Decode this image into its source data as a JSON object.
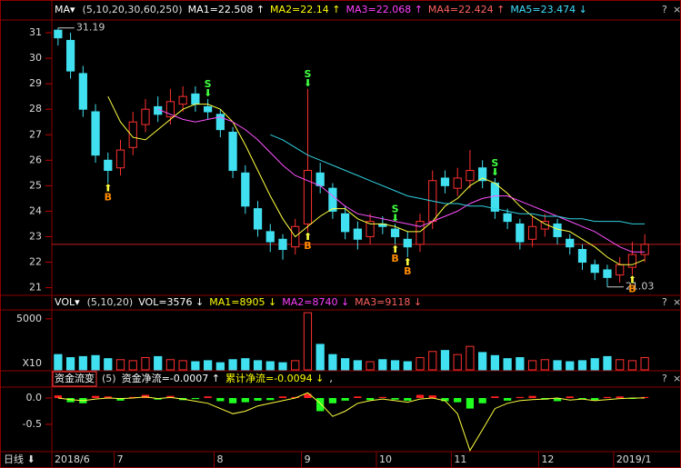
{
  "chart_data": {
    "type": "candlestick",
    "price_header": {
      "menu": "MA▾",
      "params": "(5,10,20,30,60,250)",
      "items": [
        {
          "text": "MA1=22.508 ↑",
          "color": "#ffffff"
        },
        {
          "text": "MA2=22.14 ↑",
          "color": "#ffff00"
        },
        {
          "text": "MA3=22.068 ↑",
          "color": "#ff40ff"
        },
        {
          "text": "MA4=22.424 ↑",
          "color": "#ff6060"
        },
        {
          "text": "MA5=23.474 ↓",
          "color": "#40e0ff"
        }
      ]
    },
    "categories": [
      "2018/6",
      null,
      null,
      null,
      null,
      "7",
      null,
      null,
      null,
      null,
      null,
      null,
      null,
      "8",
      null,
      null,
      null,
      null,
      null,
      null,
      "9",
      null,
      null,
      null,
      null,
      null,
      "10",
      null,
      null,
      null,
      null,
      null,
      "11",
      null,
      null,
      null,
      null,
      null,
      null,
      "12",
      null,
      null,
      null,
      null,
      null,
      "2019/1",
      null,
      null
    ],
    "open": [
      31.1,
      30.7,
      29.4,
      27.9,
      26.0,
      25.7,
      26.5,
      27.4,
      28.1,
      27.7,
      28.2,
      28.6,
      28.1,
      27.8,
      27.1,
      25.5,
      24.1,
      23.2,
      22.9,
      22.6,
      23.5,
      25.5,
      24.9,
      23.9,
      23.3,
      23.0,
      23.5,
      23.3,
      22.9,
      22.7,
      23.6,
      25.3,
      24.9,
      25.2,
      25.7,
      25.1,
      23.9,
      23.5,
      22.9,
      23.3,
      23.5,
      22.9,
      22.5,
      21.9,
      21.7,
      21.5,
      21.8,
      22.3
    ],
    "high": [
      31.19,
      31.0,
      29.7,
      28.2,
      26.3,
      26.8,
      27.9,
      28.4,
      28.5,
      28.8,
      28.9,
      28.9,
      28.4,
      28.0,
      27.3,
      25.8,
      24.4,
      23.5,
      23.1,
      23.7,
      28.8,
      25.9,
      25.1,
      24.2,
      23.6,
      23.9,
      23.8,
      23.5,
      23.2,
      23.9,
      25.6,
      25.6,
      25.7,
      26.4,
      26.0,
      25.3,
      24.1,
      23.7,
      23.8,
      23.9,
      23.7,
      23.1,
      22.7,
      22.1,
      21.9,
      22.2,
      22.8,
      23.1
    ],
    "low": [
      30.5,
      29.2,
      27.7,
      25.9,
      25.1,
      25.4,
      26.2,
      27.1,
      27.5,
      27.4,
      27.9,
      27.9,
      27.6,
      26.9,
      25.3,
      23.9,
      23.0,
      22.4,
      22.1,
      22.3,
      23.2,
      24.7,
      23.7,
      22.9,
      22.5,
      22.7,
      23.1,
      22.7,
      22.2,
      22.4,
      23.3,
      24.7,
      24.6,
      24.9,
      24.9,
      23.7,
      23.3,
      22.5,
      22.6,
      23.0,
      22.7,
      22.3,
      21.7,
      21.3,
      21.03,
      21.2,
      21.5,
      22.0
    ],
    "close": [
      30.8,
      29.5,
      28.0,
      26.2,
      25.6,
      26.4,
      27.5,
      28.0,
      27.8,
      28.3,
      28.5,
      28.2,
      27.9,
      27.2,
      25.6,
      24.2,
      23.3,
      22.8,
      22.5,
      23.4,
      25.6,
      25.0,
      24.0,
      23.2,
      22.9,
      23.6,
      23.4,
      23.0,
      22.6,
      23.6,
      25.2,
      25.0,
      25.3,
      25.6,
      25.2,
      24.0,
      23.6,
      22.8,
      23.4,
      23.6,
      23.0,
      22.6,
      22.0,
      21.6,
      21.4,
      21.9,
      22.3,
      22.7
    ],
    "up_color": "#ff3030",
    "down_color": "#40e0f0",
    "ma_lines": [
      {
        "color": "#ffff40",
        "values": [
          null,
          null,
          null,
          null,
          28.5,
          27.5,
          26.9,
          26.8,
          27.2,
          27.6,
          28.0,
          28.2,
          28.2,
          28.0,
          27.5,
          26.6,
          25.6,
          24.6,
          23.7,
          23.0,
          23.4,
          23.8,
          24.1,
          24.1,
          23.7,
          23.5,
          23.5,
          23.4,
          23.2,
          23.2,
          23.6,
          24.2,
          24.5,
          25.0,
          25.3,
          25.1,
          24.7,
          24.2,
          23.8,
          23.5,
          23.3,
          23.2,
          22.9,
          22.6,
          22.2,
          21.9,
          21.9,
          22.1
        ]
      },
      {
        "color": "#ff50ff",
        "values": [
          null,
          null,
          null,
          null,
          null,
          null,
          null,
          null,
          28.0,
          27.8,
          27.6,
          27.5,
          27.6,
          27.7,
          27.5,
          27.2,
          26.8,
          26.3,
          25.8,
          25.4,
          25.2,
          25.0,
          24.6,
          24.2,
          23.9,
          23.8,
          23.7,
          23.6,
          23.5,
          23.4,
          23.6,
          23.8,
          24.0,
          24.3,
          24.5,
          24.6,
          24.6,
          24.4,
          24.2,
          24.0,
          23.8,
          23.6,
          23.4,
          23.2,
          22.9,
          22.6,
          22.4,
          22.4
        ]
      },
      {
        "color": "#30d0e0",
        "values": [
          null,
          null,
          null,
          null,
          null,
          null,
          null,
          null,
          null,
          null,
          null,
          null,
          null,
          null,
          null,
          null,
          null,
          27.0,
          26.8,
          26.5,
          26.2,
          26.0,
          25.8,
          25.6,
          25.4,
          25.2,
          25.0,
          24.8,
          24.6,
          24.5,
          24.4,
          24.3,
          24.3,
          24.2,
          24.2,
          24.1,
          24.0,
          23.9,
          23.9,
          23.8,
          23.8,
          23.7,
          23.7,
          23.6,
          23.6,
          23.6,
          23.5,
          23.5
        ]
      }
    ],
    "buy_signals": [
      null,
      null,
      null,
      null,
      "B",
      null,
      null,
      null,
      null,
      null,
      null,
      null,
      null,
      null,
      null,
      null,
      null,
      null,
      null,
      null,
      "B",
      null,
      null,
      null,
      null,
      null,
      null,
      "B",
      "B",
      null,
      null,
      null,
      null,
      null,
      null,
      null,
      null,
      null,
      null,
      null,
      null,
      null,
      null,
      null,
      null,
      null,
      "B",
      null
    ],
    "sell_signals": [
      null,
      null,
      null,
      null,
      null,
      null,
      null,
      null,
      null,
      null,
      null,
      null,
      "S",
      null,
      null,
      null,
      null,
      null,
      null,
      null,
      "S",
      null,
      null,
      null,
      null,
      null,
      null,
      "S",
      null,
      null,
      null,
      null,
      null,
      null,
      null,
      "S",
      null,
      null,
      null,
      null,
      null,
      null,
      null,
      null,
      null,
      null,
      null,
      null
    ],
    "ylim": [
      20.7,
      31.5
    ],
    "yticks": [
      21,
      22,
      23,
      24,
      25,
      26,
      27,
      28,
      29,
      30,
      31
    ],
    "volume": {
      "header": {
        "menu": "VOL▾",
        "params": "(5,10,20)",
        "items": [
          {
            "text": "VOL=3576 ↓",
            "color": "#ffffff"
          },
          {
            "text": "MA1=8905 ↓",
            "color": "#ffff00"
          },
          {
            "text": "MA2=8740 ↓",
            "color": "#ff40ff"
          },
          {
            "text": "MA3=9118 ↓",
            "color": "#ff6060"
          }
        ]
      },
      "values": [
        1500,
        1200,
        1300,
        1400,
        1100,
        1000,
        900,
        1200,
        1300,
        1000,
        900,
        800,
        900,
        700,
        1000,
        1100,
        900,
        800,
        700,
        900,
        5600,
        2500,
        1500,
        1100,
        900,
        800,
        1000,
        900,
        800,
        1200,
        1800,
        1900,
        1500,
        2300,
        1700,
        1400,
        1100,
        1200,
        900,
        1000,
        900,
        800,
        900,
        1100,
        1300,
        1000,
        900,
        1200
      ],
      "ylim": [
        0,
        5700
      ],
      "yticks": [
        5000
      ],
      "unit": "X10"
    },
    "flow": {
      "header": {
        "menu": "资金流变",
        "params": "(5)",
        "items": [
          {
            "text": "资金净流=-0.0007 ↑",
            "color": "#ffffff"
          },
          {
            "text": "累计净流=-0.0094 ↓",
            "color": "#ffff00"
          },
          {
            "text": ",",
            "color": "#ffffff"
          }
        ]
      },
      "values": [
        0.05,
        -0.08,
        -0.1,
        0.04,
        0.03,
        -0.05,
        0.02,
        0.06,
        -0.03,
        0.04,
        -0.04,
        -0.02,
        0.03,
        -0.06,
        -0.1,
        -0.08,
        -0.05,
        -0.04,
        0.03,
        0.02,
        0.08,
        -0.25,
        -0.1,
        -0.05,
        0.03,
        -0.04,
        0.02,
        -0.03,
        -0.05,
        0.06,
        0.05,
        -0.06,
        -0.08,
        -0.2,
        -0.1,
        0.03,
        -0.05,
        0.02,
        0.04,
        -0.03,
        -0.06,
        0.03,
        -0.02,
        -0.04,
        0.02,
        0.03,
        -0.01,
        0.02
      ],
      "cumulative": [
        0.0,
        -0.03,
        -0.05,
        -0.02,
        0.0,
        -0.01,
        0.0,
        0.02,
        -0.01,
        0.01,
        -0.02,
        -0.06,
        -0.1,
        -0.2,
        -0.3,
        -0.25,
        -0.15,
        -0.1,
        -0.05,
        0.0,
        0.1,
        -0.1,
        -0.35,
        -0.25,
        -0.1,
        -0.05,
        -0.02,
        -0.05,
        -0.08,
        -0.02,
        0.0,
        -0.05,
        -0.3,
        -1.0,
        -0.6,
        -0.2,
        -0.1,
        -0.05,
        -0.03,
        -0.02,
        0.0,
        -0.04,
        -0.02,
        -0.05,
        -0.03,
        -0.01,
        0.0,
        0.0
      ],
      "ylim": [
        -1.02,
        0.19
      ],
      "yticks": [
        {
          "value": 0,
          "label": "0.0"
        },
        -0.5
      ]
    },
    "period": "日线 ⬇"
  }
}
